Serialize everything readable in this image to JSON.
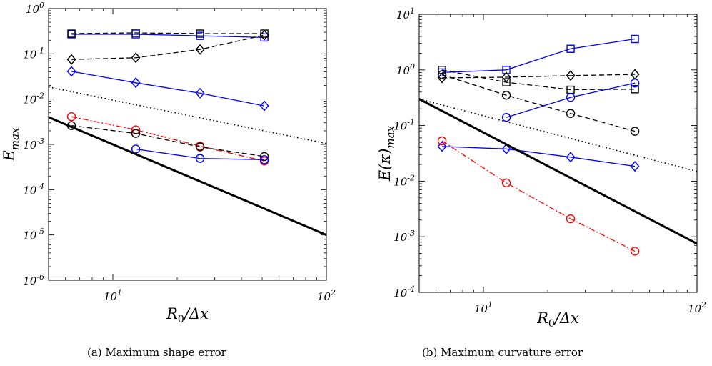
{
  "captions": [
    "(a) Maximum shape error",
    "(b) Maximum curvature error"
  ],
  "chart_data": [
    {
      "type": "line",
      "title": "",
      "caption": "(a) Maximum shape error",
      "xlabel": "R_0/Δx",
      "ylabel": "E_max",
      "xscale": "log",
      "yscale": "log",
      "xlim": [
        5,
        100
      ],
      "ylim": [
        1e-06,
        1
      ],
      "grid": false,
      "x_ticks": [
        {
          "value": 10,
          "label": "10",
          "exp": "1"
        },
        {
          "value": 100,
          "label": "10",
          "exp": "2"
        }
      ],
      "y_ticks": [
        {
          "value": 1e-06,
          "label": "10",
          "exp": "-6"
        },
        {
          "value": 1e-05,
          "label": "10",
          "exp": "-5"
        },
        {
          "value": 0.0001,
          "label": "10",
          "exp": "-4"
        },
        {
          "value": 0.001,
          "label": "10",
          "exp": "-3"
        },
        {
          "value": 0.01,
          "label": "10",
          "exp": "-2"
        },
        {
          "value": 0.1,
          "label": "10",
          "exp": "-1"
        },
        {
          "value": 1,
          "label": "10",
          "exp": "0"
        }
      ],
      "series": [
        {
          "color": "#0000ff",
          "style": "solid",
          "marker": "square",
          "x": [
            6.4,
            12.8,
            25.6,
            51.2
          ],
          "y": [
            0.27,
            0.27,
            0.25,
            0.23
          ]
        },
        {
          "color": "#000000",
          "style": "dashed",
          "marker": "square",
          "x": [
            6.4,
            12.8,
            25.6,
            51.2
          ],
          "y": [
            0.28,
            0.29,
            0.28,
            0.28
          ]
        },
        {
          "color": "#000000",
          "style": "dashed",
          "marker": "diamond",
          "x": [
            6.4,
            12.8,
            25.6,
            51.2
          ],
          "y": [
            0.075,
            0.082,
            0.125,
            0.26
          ]
        },
        {
          "color": "#0000ff",
          "style": "solid",
          "marker": "diamond",
          "x": [
            6.4,
            12.8,
            25.6,
            51.2
          ],
          "y": [
            0.041,
            0.023,
            0.0135,
            0.0071
          ]
        },
        {
          "color": "#ff0000",
          "style": "dashdot",
          "marker": "circle",
          "x": [
            6.4,
            12.8,
            25.6,
            51.2
          ],
          "y": [
            0.0041,
            0.0021,
            0.00092,
            0.00043
          ]
        },
        {
          "color": "#000000",
          "style": "dashed",
          "marker": "circle",
          "x": [
            6.4,
            12.8,
            25.6,
            51.2
          ],
          "y": [
            0.0026,
            0.00175,
            0.00088,
            0.00054
          ]
        },
        {
          "color": "#0000ff",
          "style": "solid",
          "marker": "circle",
          "x": [
            12.8,
            25.6,
            51.2
          ],
          "y": [
            0.00079,
            0.00049,
            0.00046
          ]
        },
        {
          "color": "#000000",
          "style": "dotted",
          "marker": "none",
          "width": 1.6,
          "x": [
            5,
            100
          ],
          "y": [
            0.0185,
            0.00105
          ]
        },
        {
          "color": "#000000",
          "style": "solid",
          "marker": "none",
          "width": 3,
          "x": [
            5,
            100
          ],
          "y": [
            0.004,
            1e-05
          ]
        }
      ]
    },
    {
      "type": "line",
      "title": "",
      "caption": "(b) Maximum curvature error",
      "xlabel": "R_0/Δx",
      "ylabel": "E(κ)_max",
      "xscale": "log",
      "yscale": "log",
      "xlim": [
        5,
        100
      ],
      "ylim": [
        0.0001,
        10
      ],
      "grid": false,
      "x_ticks": [
        {
          "value": 10,
          "label": "10",
          "exp": "1"
        },
        {
          "value": 100,
          "label": "10",
          "exp": "2"
        }
      ],
      "y_ticks": [
        {
          "value": 0.0001,
          "label": "10",
          "exp": "-4"
        },
        {
          "value": 0.001,
          "label": "10",
          "exp": "-3"
        },
        {
          "value": 0.01,
          "label": "10",
          "exp": "-2"
        },
        {
          "value": 0.1,
          "label": "10",
          "exp": "-1"
        },
        {
          "value": 1,
          "label": "10",
          "exp": "0"
        },
        {
          "value": 10,
          "label": "10",
          "exp": "1"
        }
      ],
      "series": [
        {
          "color": "#0000ff",
          "style": "solid",
          "marker": "square",
          "x": [
            6.4,
            12.8,
            25.6,
            51.2
          ],
          "y": [
            0.9,
            1.0,
            2.4,
            3.6
          ]
        },
        {
          "color": "#000000",
          "style": "dashed",
          "marker": "square",
          "x": [
            6.4,
            12.8,
            25.6,
            51.2
          ],
          "y": [
            1.0,
            0.6,
            0.44,
            0.45
          ]
        },
        {
          "color": "#000000",
          "style": "dashed",
          "marker": "diamond",
          "x": [
            6.4,
            12.8,
            25.6,
            51.2
          ],
          "y": [
            0.72,
            0.74,
            0.79,
            0.83
          ]
        },
        {
          "color": "#000000",
          "style": "dashed",
          "marker": "circle",
          "x": [
            6.4,
            12.8,
            25.6,
            51.2
          ],
          "y": [
            0.82,
            0.35,
            0.165,
            0.079
          ]
        },
        {
          "color": "#0000ff",
          "style": "solid",
          "marker": "circle",
          "x": [
            12.8,
            25.6,
            51.2
          ],
          "y": [
            0.14,
            0.32,
            0.58
          ]
        },
        {
          "color": "#0000ff",
          "style": "solid",
          "marker": "diamond",
          "x": [
            6.4,
            12.8,
            25.6,
            51.2
          ],
          "y": [
            0.042,
            0.038,
            0.027,
            0.0185
          ]
        },
        {
          "color": "#ff0000",
          "style": "dashdot",
          "marker": "circle",
          "x": [
            6.4,
            12.8,
            25.6,
            51.2
          ],
          "y": [
            0.053,
            0.0093,
            0.0021,
            0.00055
          ]
        },
        {
          "color": "#000000",
          "style": "dotted",
          "marker": "none",
          "width": 1.6,
          "x": [
            5,
            100
          ],
          "y": [
            0.3,
            0.015
          ]
        },
        {
          "color": "#000000",
          "style": "solid",
          "marker": "none",
          "width": 3,
          "x": [
            5,
            100
          ],
          "y": [
            0.3,
            0.00075
          ]
        }
      ]
    }
  ]
}
